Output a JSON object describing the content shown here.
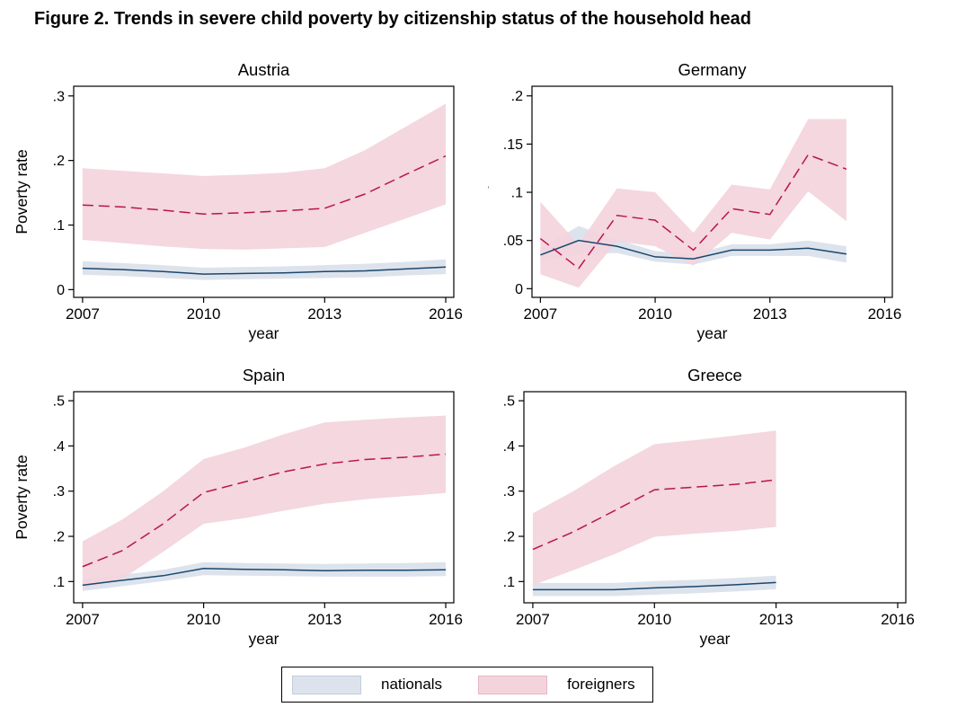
{
  "figure": {
    "title": "Figure 2. Trends in severe child poverty by citizenship status of the household head"
  },
  "legend": {
    "items": [
      {
        "name": "nationals",
        "label": "nationals",
        "color": "#dde3ec",
        "border": "#c2cddd"
      },
      {
        "name": "foreigners",
        "label": "foreigners",
        "color": "#f3d4dc",
        "border": "#e7b6c3"
      }
    ]
  },
  "styles": {
    "nationals_line_color": "#1a476f",
    "foreigners_line_color": "#b81649",
    "nationals_band_color": "#dde3ec",
    "foreigners_band_color": "#f3d4dc",
    "axis_color": "#000000"
  },
  "chart_data": [
    {
      "type": "line",
      "title": "Austria",
      "xlabel": "year",
      "ylabel": "Poverty rate",
      "x": [
        2007,
        2008,
        2009,
        2010,
        2011,
        2012,
        2013,
        2014,
        2015,
        2016
      ],
      "xlim": [
        2006.78,
        2016.2
      ],
      "ylim": [
        -0.012,
        0.315
      ],
      "xticks": {
        "values": [
          2007,
          2010,
          2013,
          2016
        ],
        "labels": [
          "2007",
          "2010",
          "2013",
          "2016"
        ]
      },
      "yticks": {
        "values": [
          0,
          0.1,
          0.2,
          0.3
        ],
        "labels": [
          "0",
          ".1",
          ".2",
          ".3"
        ]
      },
      "series": [
        {
          "name": "nationals",
          "values": [
            0.033,
            0.031,
            0.028,
            0.024,
            0.025,
            0.026,
            0.028,
            0.029,
            0.032,
            0.035
          ],
          "lower": [
            0.023,
            0.021,
            0.018,
            0.015,
            0.016,
            0.017,
            0.018,
            0.019,
            0.022,
            0.024
          ],
          "upper": [
            0.044,
            0.041,
            0.038,
            0.034,
            0.035,
            0.036,
            0.038,
            0.04,
            0.043,
            0.047
          ]
        },
        {
          "name": "foreigners",
          "values": [
            0.131,
            0.128,
            0.123,
            0.117,
            0.119,
            0.122,
            0.126,
            0.148,
            0.178,
            0.207
          ],
          "lower": [
            0.077,
            0.072,
            0.067,
            0.063,
            0.062,
            0.064,
            0.066,
            0.088,
            0.11,
            0.132
          ],
          "upper": [
            0.188,
            0.184,
            0.18,
            0.176,
            0.178,
            0.181,
            0.188,
            0.216,
            0.252,
            0.288
          ]
        }
      ]
    },
    {
      "type": "line",
      "title": "Germany",
      "xlabel": "year",
      "ylabel": "Poverty rate",
      "x": [
        2007,
        2008,
        2009,
        2010,
        2011,
        2012,
        2013,
        2014,
        2015
      ],
      "xlim": [
        2006.78,
        2016.2
      ],
      "ylim": [
        -0.009,
        0.21
      ],
      "xticks": {
        "values": [
          2007,
          2010,
          2013,
          2016
        ],
        "labels": [
          "2007",
          "2010",
          "2013",
          "2016"
        ]
      },
      "yticks": {
        "values": [
          0,
          0.05,
          0.1,
          0.15,
          0.2
        ],
        "labels": [
          "0",
          ".05",
          ".1",
          ".15",
          ".2"
        ]
      },
      "series": [
        {
          "name": "nationals",
          "values": [
            0.035,
            0.05,
            0.044,
            0.033,
            0.031,
            0.04,
            0.04,
            0.042,
            0.036
          ],
          "lower": [
            0.028,
            0.036,
            0.037,
            0.028,
            0.025,
            0.034,
            0.034,
            0.034,
            0.027
          ],
          "upper": [
            0.042,
            0.065,
            0.051,
            0.039,
            0.036,
            0.046,
            0.046,
            0.05,
            0.044
          ]
        },
        {
          "name": "foreigners",
          "values": [
            0.052,
            0.021,
            0.076,
            0.071,
            0.04,
            0.083,
            0.077,
            0.139,
            0.124
          ],
          "lower": [
            0.015,
            0.001,
            0.049,
            0.044,
            0.024,
            0.058,
            0.051,
            0.101,
            0.07
          ],
          "upper": [
            0.09,
            0.046,
            0.104,
            0.1,
            0.058,
            0.108,
            0.103,
            0.176,
            0.176
          ]
        }
      ]
    },
    {
      "type": "line",
      "title": "Spain",
      "xlabel": "year",
      "ylabel": "Poverty rate",
      "x": [
        2007,
        2008,
        2009,
        2010,
        2011,
        2012,
        2013,
        2014,
        2015,
        2016
      ],
      "xlim": [
        2006.78,
        2016.2
      ],
      "ylim": [
        0.053,
        0.52
      ],
      "xticks": {
        "values": [
          2007,
          2010,
          2013,
          2016
        ],
        "labels": [
          "2007",
          "2010",
          "2013",
          "2016"
        ]
      },
      "yticks": {
        "values": [
          0.1,
          0.2,
          0.3,
          0.4,
          0.5
        ],
        "labels": [
          ".1",
          ".2",
          ".3",
          ".4",
          ".5"
        ]
      },
      "series": [
        {
          "name": "nationals",
          "values": [
            0.092,
            0.103,
            0.113,
            0.129,
            0.127,
            0.126,
            0.124,
            0.125,
            0.125,
            0.126
          ],
          "lower": [
            0.079,
            0.09,
            0.101,
            0.114,
            0.113,
            0.112,
            0.111,
            0.111,
            0.111,
            0.112
          ],
          "upper": [
            0.104,
            0.115,
            0.126,
            0.143,
            0.141,
            0.14,
            0.139,
            0.14,
            0.141,
            0.143
          ]
        },
        {
          "name": "foreigners",
          "values": [
            0.133,
            0.169,
            0.228,
            0.297,
            0.32,
            0.343,
            0.36,
            0.37,
            0.375,
            0.382
          ],
          "lower": [
            0.084,
            0.107,
            0.166,
            0.228,
            0.24,
            0.257,
            0.272,
            0.282,
            0.289,
            0.296
          ],
          "upper": [
            0.189,
            0.238,
            0.3,
            0.371,
            0.396,
            0.426,
            0.452,
            0.458,
            0.463,
            0.467
          ]
        }
      ]
    },
    {
      "type": "line",
      "title": "Greece",
      "xlabel": "year",
      "ylabel": "Poverty rate",
      "x": [
        2007,
        2008,
        2009,
        2010,
        2011,
        2012,
        2013
      ],
      "xlim": [
        2006.78,
        2016.2
      ],
      "ylim": [
        0.053,
        0.52
      ],
      "xticks": {
        "values": [
          2007,
          2010,
          2013,
          2016
        ],
        "labels": [
          "2007",
          "2010",
          "2013",
          "2016"
        ]
      },
      "yticks": {
        "values": [
          0.1,
          0.2,
          0.3,
          0.4,
          0.5
        ],
        "labels": [
          ".1",
          ".2",
          ".3",
          ".4",
          ".5"
        ]
      },
      "series": [
        {
          "name": "nationals",
          "values": [
            0.082,
            0.082,
            0.082,
            0.086,
            0.089,
            0.093,
            0.098
          ],
          "lower": [
            0.068,
            0.068,
            0.068,
            0.071,
            0.074,
            0.078,
            0.083
          ],
          "upper": [
            0.097,
            0.097,
            0.097,
            0.101,
            0.104,
            0.108,
            0.113
          ]
        },
        {
          "name": "foreigners",
          "values": [
            0.171,
            0.21,
            0.256,
            0.303,
            0.309,
            0.315,
            0.325
          ],
          "lower": [
            0.092,
            0.125,
            0.16,
            0.199,
            0.206,
            0.212,
            0.221
          ],
          "upper": [
            0.251,
            0.3,
            0.355,
            0.404,
            0.413,
            0.423,
            0.434
          ]
        }
      ]
    }
  ]
}
